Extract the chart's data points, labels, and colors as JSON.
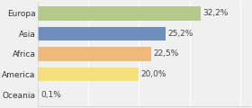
{
  "categories": [
    "Europa",
    "Asia",
    "Africa",
    "America",
    "Oceania"
  ],
  "values": [
    32.2,
    25.2,
    22.5,
    20.0,
    0.1
  ],
  "labels": [
    "32,2%",
    "25,2%",
    "22,5%",
    "20,0%",
    "0,1%"
  ],
  "bar_colors": [
    "#b5c98a",
    "#6e8fbe",
    "#f0b97c",
    "#f5e07a",
    "#f0f0f0"
  ],
  "background_color": "#f0f0f0",
  "xlim": [
    0,
    42
  ],
  "label_fontsize": 6.5,
  "tick_fontsize": 6.5,
  "grid_color": "#ffffff",
  "grid_xticks": [
    0,
    10,
    20,
    30,
    40
  ]
}
